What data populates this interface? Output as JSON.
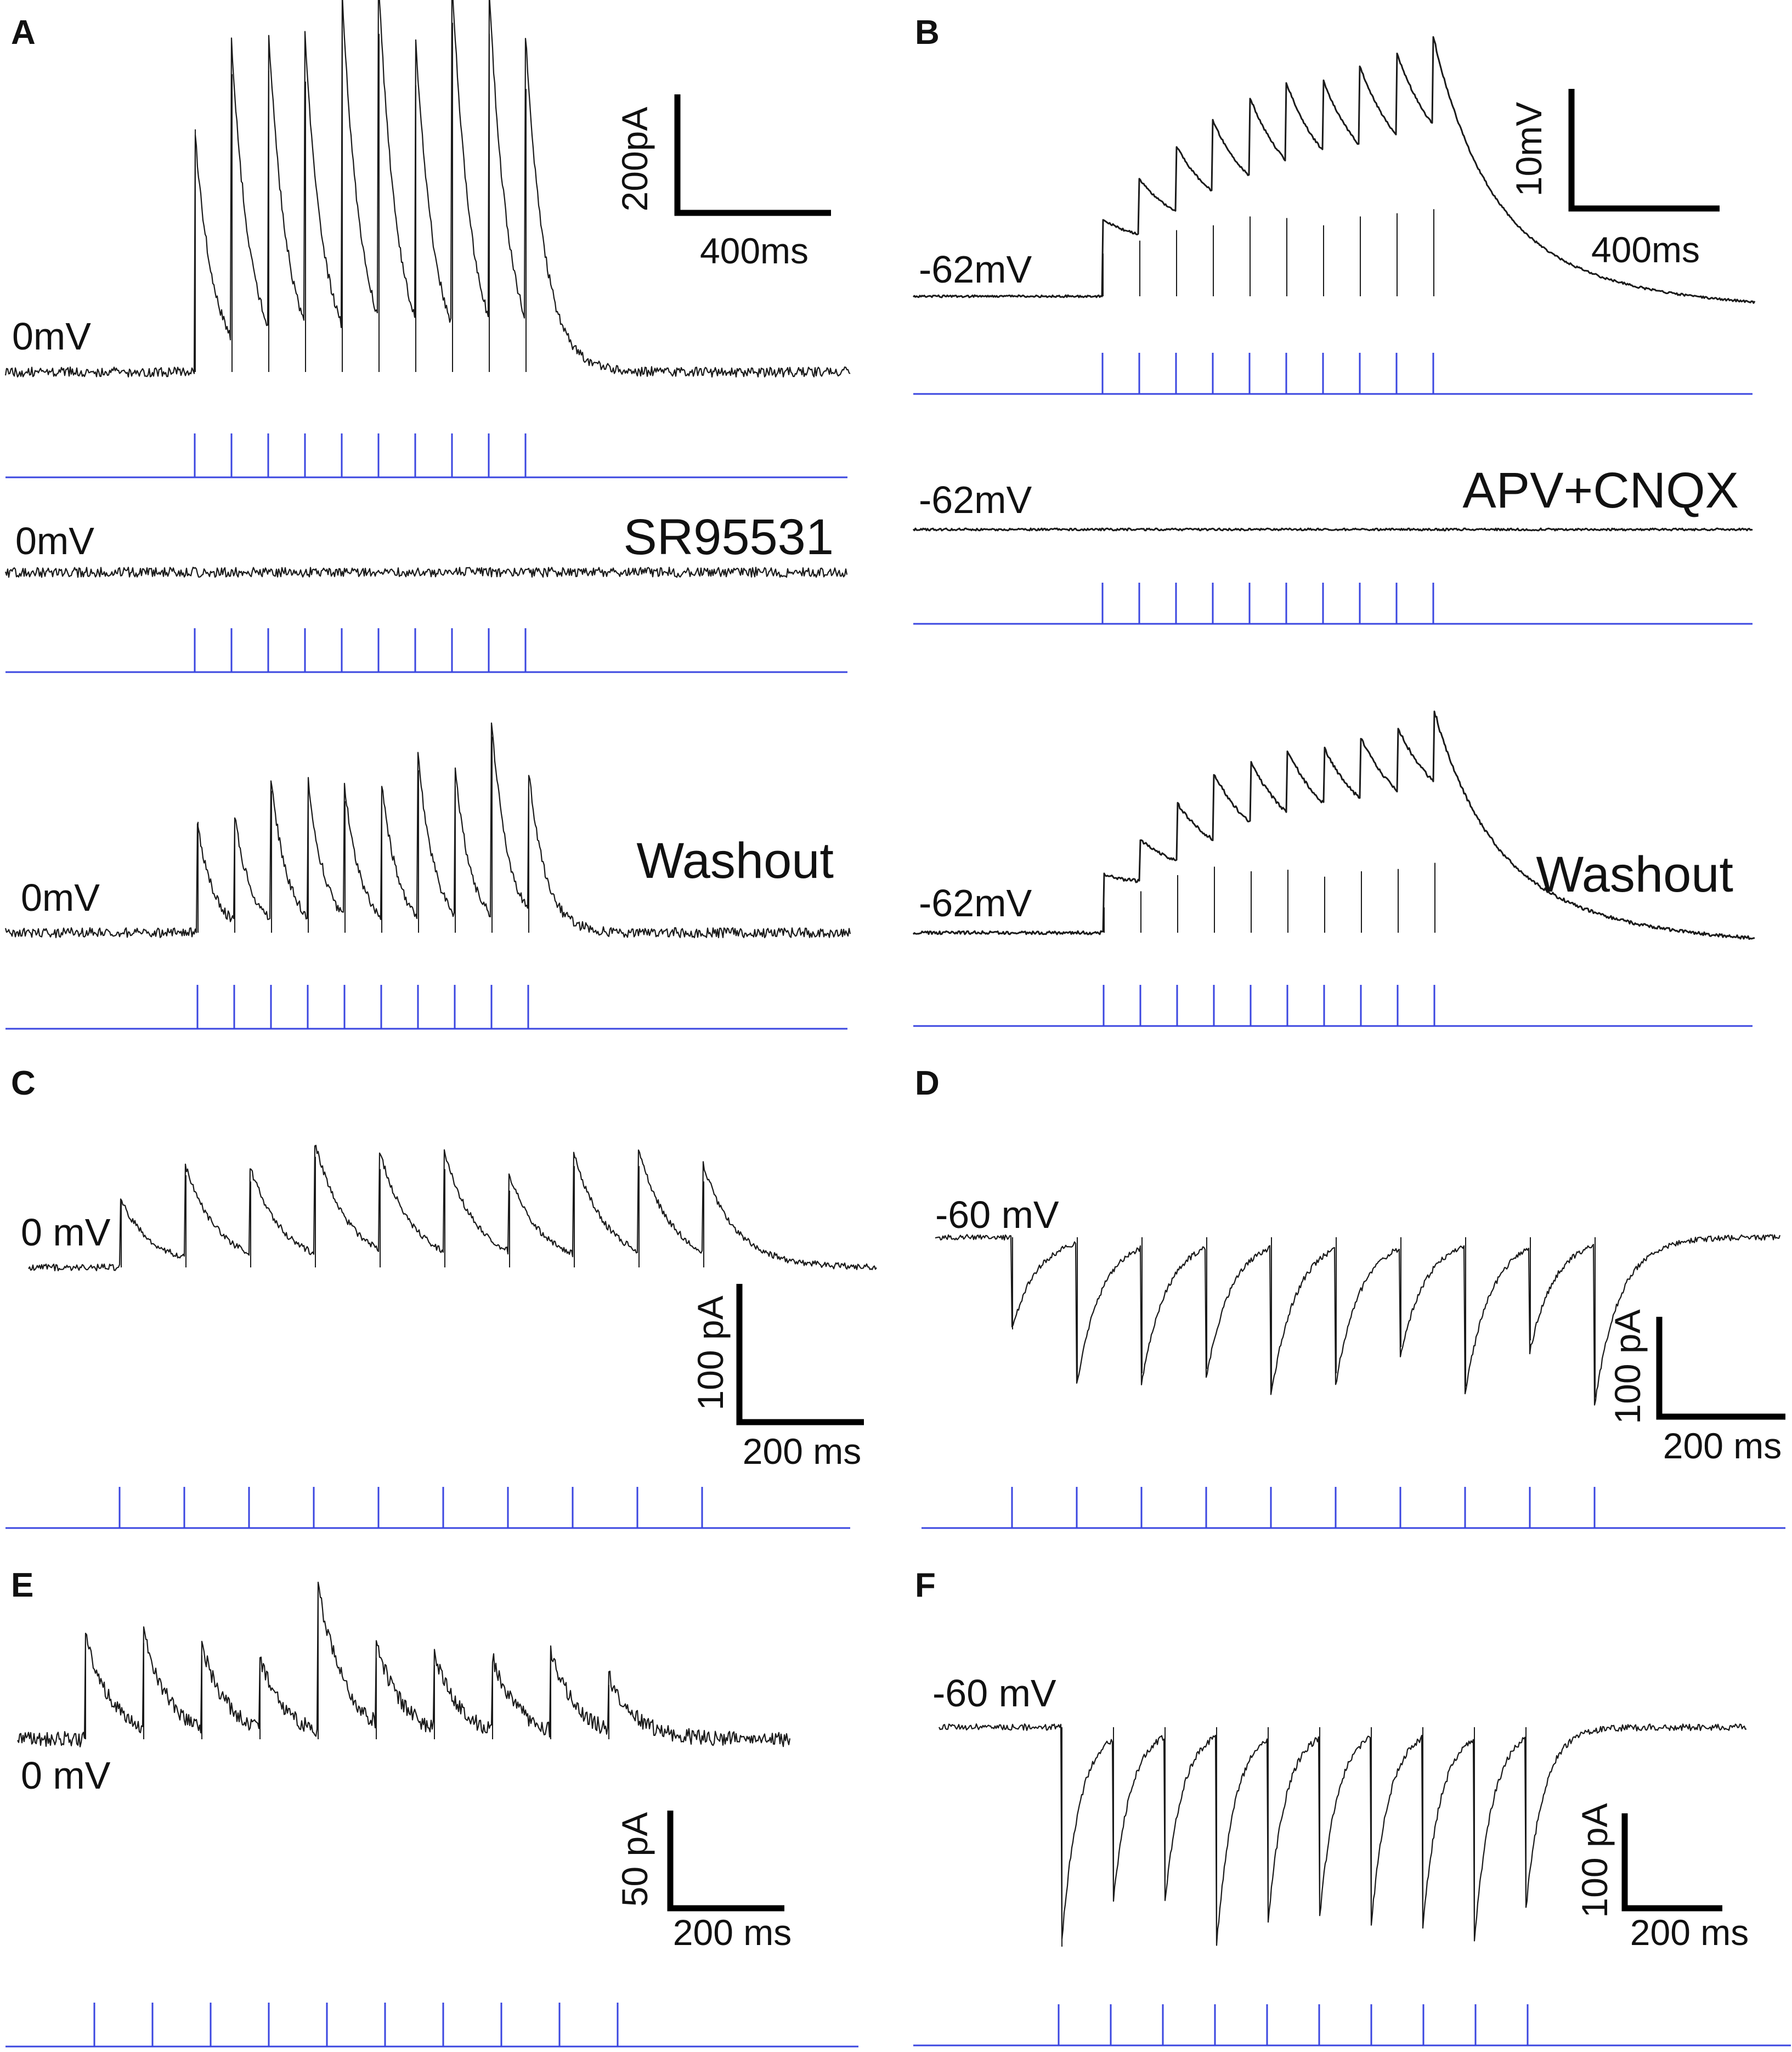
{
  "colors": {
    "trace": "#1a1a1a",
    "stimulus": "#3a46e0",
    "scalebar": "#000000"
  },
  "chart_data": [
    {
      "panel": "A",
      "type": "line",
      "traces": [
        {
          "label": "0mV",
          "condition": "",
          "polarity": "outward",
          "amplitudes": [
            0.66,
            0.81,
            0.82,
            0.79,
            0.93,
            0.92,
            0.78,
            0.95,
            0.92,
            0.77
          ],
          "stimuli": 10
        },
        {
          "label": "0mV",
          "condition": "SR95531",
          "polarity": "flat",
          "amplitudes": [],
          "stimuli": 10
        },
        {
          "label": "0mV",
          "condition": "Washout",
          "polarity": "outward",
          "amplitudes": [
            0.43,
            0.42,
            0.55,
            0.55,
            0.51,
            0.54,
            0.63,
            0.57,
            0.76,
            0.56
          ],
          "stimuli": 10
        }
      ],
      "scalebar": {
        "y_label": "200pA",
        "x_label": "400ms"
      }
    },
    {
      "panel": "B",
      "type": "line",
      "traces": [
        {
          "label": "-62mV",
          "condition": "",
          "polarity": "depolarizing",
          "amplitudes": [
            0.53,
            0.69,
            0.82,
            0.88,
            0.99,
            0.97,
            0.88,
            0.99,
            1.03,
            1.08
          ],
          "stimuli": 10
        },
        {
          "label": "-62mV",
          "condition": "APV+CNQX",
          "polarity": "flat",
          "amplitudes": [],
          "stimuli": 10
        },
        {
          "label": "-62mV",
          "condition": "Washout",
          "polarity": "depolarizing",
          "amplitudes": [
            0.33,
            0.54,
            0.75,
            0.86,
            0.8,
            0.82,
            0.73,
            0.8,
            0.83,
            0.91
          ],
          "stimuli": 10
        }
      ],
      "scalebar": {
        "y_label": "10mV",
        "x_label": "400ms"
      }
    },
    {
      "panel": "C",
      "type": "line",
      "traces": [
        {
          "label": "0 mV",
          "condition": "",
          "polarity": "outward",
          "amplitudes": [
            0.22,
            0.3,
            0.28,
            0.36,
            0.32,
            0.32,
            0.25,
            0.33,
            0.33,
            0.28
          ],
          "stimuli": 10
        }
      ],
      "scalebar": {
        "y_label": "100 pA",
        "x_label": "200 ms"
      }
    },
    {
      "panel": "D",
      "type": "line",
      "traces": [
        {
          "label": "-60 mV",
          "condition": "",
          "polarity": "inward",
          "amplitudes": [
            0.42,
            0.64,
            0.62,
            0.6,
            0.68,
            0.62,
            0.5,
            0.68,
            0.47,
            0.73
          ],
          "stimuli": 10
        }
      ],
      "scalebar": {
        "y_label": "100 pA",
        "x_label": "200 ms"
      }
    },
    {
      "panel": "E",
      "type": "line",
      "traces": [
        {
          "label": "0 mV",
          "condition": "",
          "polarity": "outward",
          "amplitudes": [
            0.42,
            0.39,
            0.34,
            0.29,
            0.6,
            0.33,
            0.3,
            0.3,
            0.33,
            0.22
          ],
          "stimuli": 10
        }
      ],
      "scalebar": {
        "y_label": "50 pA",
        "x_label": "200 ms"
      }
    },
    {
      "panel": "F",
      "type": "line",
      "traces": [
        {
          "label": "-60 mV",
          "condition": "",
          "polarity": "inward",
          "amplitudes": [
            1.0,
            0.76,
            0.78,
            0.98,
            0.86,
            0.84,
            0.88,
            0.9,
            0.96,
            0.8
          ],
          "stimuli": 10
        }
      ],
      "scalebar": {
        "y_label": "100 pA",
        "x_label": "200 ms"
      }
    }
  ]
}
